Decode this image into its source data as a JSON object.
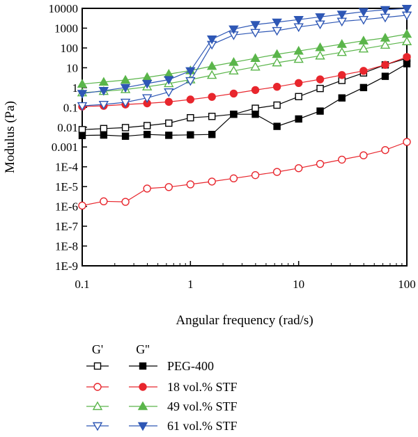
{
  "chart_data": {
    "type": "line",
    "xlabel": "Angular frequency (rad/s)",
    "ylabel": "Modulus (Pa)",
    "xscale": "log",
    "yscale": "log",
    "xlim": [
      0.1,
      100
    ],
    "ylim": [
      1e-09,
      10000
    ],
    "grid": false,
    "legend_placement": "bottom",
    "x_ticks": [
      {
        "value": 0.1,
        "label": "0.1"
      },
      {
        "value": 1,
        "label": "1"
      },
      {
        "value": 10,
        "label": "10"
      },
      {
        "value": 100,
        "label": "100"
      }
    ],
    "y_ticks": [
      {
        "value": 10000,
        "label": "10000"
      },
      {
        "value": 1000,
        "label": "1000"
      },
      {
        "value": 100,
        "label": "100"
      },
      {
        "value": 10,
        "label": "10"
      },
      {
        "value": 1,
        "label": "1"
      },
      {
        "value": 0.1,
        "label": "0.1"
      },
      {
        "value": 0.01,
        "label": "0.01"
      },
      {
        "value": 0.001,
        "label": "0.001"
      },
      {
        "value": 0.0001,
        "label": "1E-4"
      },
      {
        "value": 1e-05,
        "label": "1E-5"
      },
      {
        "value": 1e-06,
        "label": "1E-6"
      },
      {
        "value": 1e-07,
        "label": "1E-7"
      },
      {
        "value": 1e-08,
        "label": "1E-8"
      },
      {
        "value": 1e-09,
        "label": "1E-9"
      }
    ],
    "legend_headers": [
      "G'",
      "G''"
    ],
    "x": [
      0.1,
      0.158,
      0.251,
      0.398,
      0.631,
      1.0,
      1.58,
      2.51,
      3.98,
      6.31,
      10.0,
      15.8,
      25.1,
      39.8,
      63.1,
      100
    ],
    "materials": [
      {
        "name": "PEG-400",
        "color": "#000000",
        "marker": "square",
        "g_prime": [
          0.0075,
          0.0085,
          0.0095,
          0.012,
          0.016,
          0.03,
          0.035,
          0.045,
          0.09,
          0.13,
          0.35,
          0.9,
          2.3,
          5.5,
          14,
          30
        ],
        "g_double_prime": [
          0.0038,
          0.004,
          0.0035,
          0.0043,
          0.0039,
          0.0041,
          0.0043,
          0.045,
          0.045,
          0.011,
          0.026,
          0.065,
          0.3,
          1.0,
          3.7,
          16
        ]
      },
      {
        "name": "18 vol.% STF",
        "color": "#e8262d",
        "marker": "circle",
        "g_prime": [
          1.1e-06,
          1.8e-06,
          1.7e-06,
          8e-06,
          9.5e-06,
          1.3e-05,
          1.8e-05,
          2.6e-05,
          3.8e-05,
          5.5e-05,
          8.5e-05,
          0.00014,
          0.00023,
          0.00038,
          0.0007,
          0.0018
        ],
        "g_double_prime": [
          0.11,
          0.12,
          0.14,
          0.16,
          0.19,
          0.25,
          0.34,
          0.5,
          0.75,
          1.1,
          1.7,
          2.6,
          4.3,
          7.0,
          14,
          35
        ]
      },
      {
        "name": "49 vol.% STF",
        "color": "#5ab54a",
        "marker": "triangle-up",
        "g_prime": [
          0.55,
          0.65,
          0.8,
          1.1,
          1.6,
          2.5,
          4.2,
          7.0,
          11,
          18,
          27,
          40,
          60,
          90,
          140,
          210
        ],
        "g_double_prime": [
          1.5,
          1.9,
          2.4,
          3.3,
          4.8,
          7.2,
          12,
          19,
          30,
          48,
          70,
          105,
          155,
          230,
          320,
          500
        ]
      },
      {
        "name": "61 vol.% STF",
        "color": "#2e57b5",
        "marker": "triangle-down",
        "g_prime": [
          0.12,
          0.14,
          0.18,
          0.3,
          0.6,
          2.2,
          150,
          450,
          600,
          750,
          1150,
          1600,
          2200,
          2700,
          3500,
          4500
        ],
        "g_double_prime": [
          0.5,
          0.7,
          1.0,
          1.6,
          2.5,
          7.0,
          280,
          900,
          1500,
          2000,
          2700,
          3700,
          5000,
          6800,
          8500,
          9800
        ]
      }
    ]
  }
}
